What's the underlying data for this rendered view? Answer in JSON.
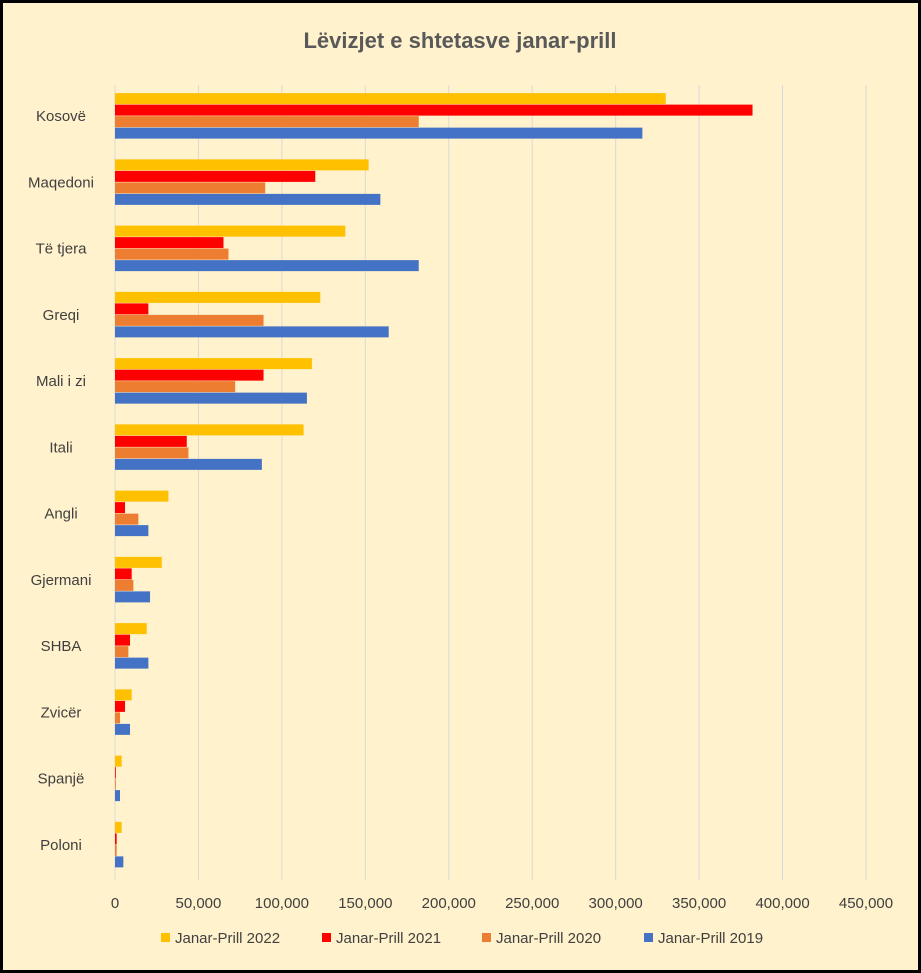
{
  "chart_data": {
    "type": "bar",
    "orientation": "horizontal",
    "title": "Lëvizjet e shtetasve janar-prill",
    "categories": [
      "Kosovë",
      "Maqedoni",
      "Të tjera",
      "Greqi",
      "Mali i zi",
      "Itali",
      "Angli",
      "Gjermani",
      "SHBA",
      "Zvicër",
      "Spanjë",
      "Poloni"
    ],
    "series": [
      {
        "name": "Janar-Prill 2022",
        "color": "#ffc000",
        "values": [
          330000,
          152000,
          138000,
          123000,
          118000,
          113000,
          32000,
          28000,
          19000,
          10000,
          4000,
          4000
        ]
      },
      {
        "name": "Janar-Prill 2021",
        "color": "#ff0000",
        "values": [
          382000,
          120000,
          65000,
          20000,
          89000,
          43000,
          6000,
          10000,
          9000,
          6000,
          500,
          1000
        ]
      },
      {
        "name": "Janar-Prill 2020",
        "color": "#ed7d31",
        "values": [
          182000,
          90000,
          68000,
          89000,
          72000,
          44000,
          14000,
          11000,
          8000,
          3000,
          500,
          1000
        ]
      },
      {
        "name": "Janar-Prill 2019",
        "color": "#4472c4",
        "values": [
          316000,
          159000,
          182000,
          164000,
          115000,
          88000,
          20000,
          21000,
          20000,
          9000,
          3000,
          5000
        ]
      }
    ],
    "xlim": [
      0,
      450000
    ],
    "xticks": [
      "0",
      "50,000",
      "100,000",
      "150,000",
      "200,000",
      "250,000",
      "300,000",
      "350,000",
      "400,000",
      "450,000"
    ],
    "grid": true,
    "legend_position": "bottom"
  }
}
